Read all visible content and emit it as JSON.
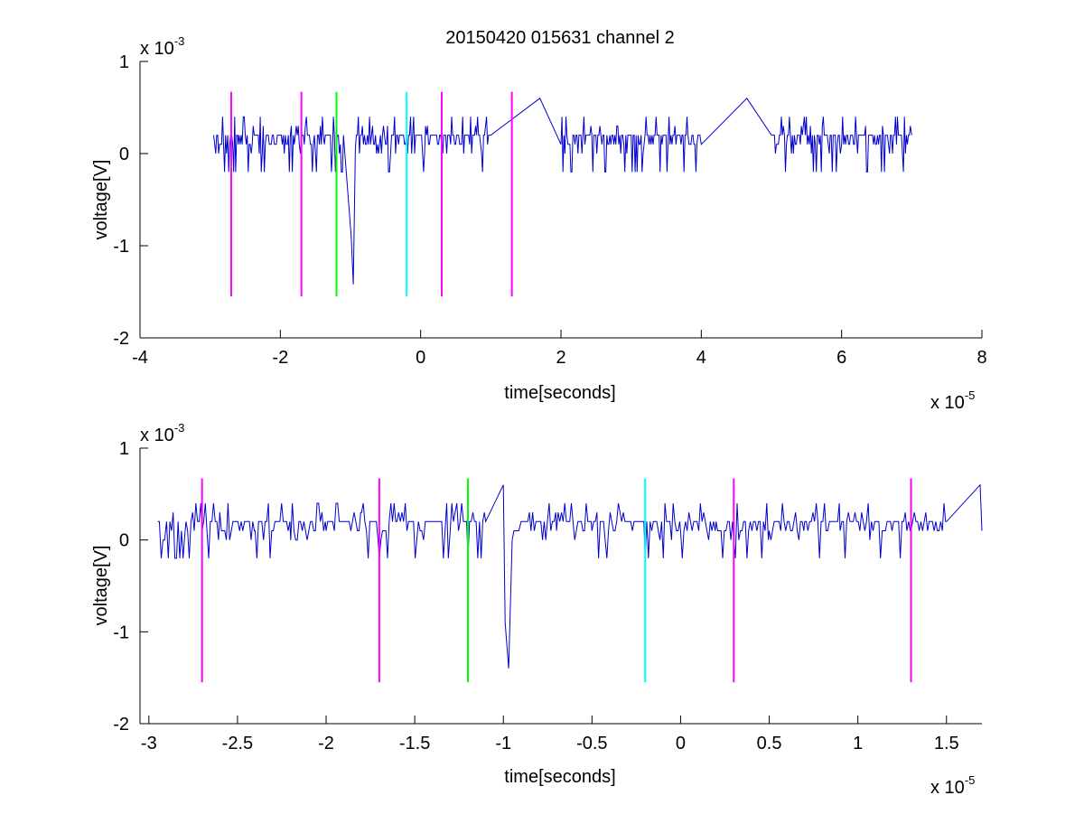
{
  "figure": {
    "title": "20150420 015631 channel 2",
    "background": "#ffffff",
    "signal_color": "#0000cc",
    "marker_colors": {
      "magenta": "#ff00ff",
      "green": "#00ff00",
      "cyan": "#00ffff"
    }
  },
  "chart_data": [
    {
      "type": "line",
      "title": "20150420 015631 channel 2",
      "xlabel": "time[seconds]",
      "ylabel": "voltage[V]",
      "x_multiplier": "x 10",
      "x_multiplier_exp": "-5",
      "y_multiplier": "x 10",
      "y_multiplier_exp": "-3",
      "xlim": [
        -4,
        8
      ],
      "ylim": [
        -2,
        1
      ],
      "xticks": [
        -4,
        -2,
        0,
        2,
        4,
        6,
        8
      ],
      "xtick_labels": [
        "-4",
        "-2",
        "0",
        "2",
        "4",
        "6",
        "8"
      ],
      "yticks": [
        -2,
        -1,
        0,
        1
      ],
      "ytick_labels": [
        "-2",
        "-1",
        "0",
        "1"
      ],
      "grid": false,
      "series": [
        {
          "color": "#0000cc",
          "x_range": [
            -2.95,
            7.0
          ],
          "values": [
            [
              -2.95,
              0.2
            ],
            [
              -2.88,
              0.0
            ],
            [
              -2.75,
              0.2
            ],
            [
              -2.6,
              0.1
            ],
            [
              -2.5,
              0.2
            ],
            [
              -2.3,
              0.0
            ],
            [
              -2.1,
              0.2
            ],
            [
              -1.9,
              0.1
            ],
            [
              -1.7,
              0.2
            ],
            [
              -1.5,
              0.0
            ],
            [
              -1.3,
              0.2
            ],
            [
              -1.1,
              0.2
            ],
            [
              -0.99,
              -0.9
            ],
            [
              -0.96,
              -1.42
            ],
            [
              -0.93,
              0.05
            ],
            [
              -0.8,
              0.2
            ],
            [
              -0.5,
              0.1
            ],
            [
              -0.2,
              0.2
            ],
            [
              0.3,
              0.1
            ],
            [
              1.0,
              0.2
            ],
            [
              1.7,
              0.6
            ],
            [
              2.0,
              0.1
            ],
            [
              3.0,
              0.2
            ],
            [
              4.0,
              0.1
            ],
            [
              4.65,
              0.6
            ],
            [
              5.0,
              0.2
            ],
            [
              6.0,
              0.1
            ],
            [
              7.0,
              0.2
            ]
          ]
        }
      ],
      "markers": [
        {
          "x": -2.7,
          "y_top": 0.67,
          "y_bottom": -1.55,
          "color": "#ff00ff"
        },
        {
          "x": -1.7,
          "y_top": 0.67,
          "y_bottom": -1.55,
          "color": "#ff00ff"
        },
        {
          "x": -1.2,
          "y_top": 0.67,
          "y_bottom": -1.55,
          "color": "#00ff00"
        },
        {
          "x": -0.2,
          "y_top": 0.67,
          "y_bottom": -1.55,
          "color": "#00ffff"
        },
        {
          "x": 0.3,
          "y_top": 0.67,
          "y_bottom": -1.55,
          "color": "#ff00ff"
        },
        {
          "x": 1.3,
          "y_top": 0.67,
          "y_bottom": -1.55,
          "color": "#ff00ff"
        }
      ]
    },
    {
      "type": "line",
      "title": "",
      "xlabel": "time[seconds]",
      "ylabel": "voltage[V]",
      "x_multiplier": "x 10",
      "x_multiplier_exp": "-5",
      "y_multiplier": "x 10",
      "y_multiplier_exp": "-3",
      "xlim": [
        -3.05,
        1.7
      ],
      "ylim": [
        -2,
        1
      ],
      "xticks": [
        -3,
        -2.5,
        -2,
        -1.5,
        -1,
        -0.5,
        0,
        0.5,
        1,
        1.5
      ],
      "xtick_labels": [
        "-3",
        "-2.5",
        "-2",
        "-1.5",
        "-1",
        "-0.5",
        "0",
        "0.5",
        "1",
        "1.5"
      ],
      "yticks": [
        -2,
        -1,
        0,
        1
      ],
      "ytick_labels": [
        "-2",
        "-1",
        "0",
        "1"
      ],
      "grid": false,
      "series": [
        {
          "color": "#0000cc",
          "x_range": [
            -2.95,
            1.7
          ],
          "values": [
            [
              -2.95,
              0.2
            ],
            [
              -2.93,
              -0.2
            ],
            [
              -2.9,
              0.2
            ],
            [
              -2.8,
              0.0
            ],
            [
              -2.7,
              0.1
            ],
            [
              -2.6,
              0.3
            ],
            [
              -2.4,
              0.1
            ],
            [
              -2.2,
              0.0
            ],
            [
              -2.0,
              0.1
            ],
            [
              -1.8,
              0.3
            ],
            [
              -1.7,
              -0.2
            ],
            [
              -1.6,
              0.2
            ],
            [
              -1.45,
              0.0
            ],
            [
              -1.3,
              0.1
            ],
            [
              -1.2,
              -0.2
            ],
            [
              -1.1,
              0.2
            ],
            [
              -1.0,
              0.6
            ],
            [
              -0.99,
              -0.9
            ],
            [
              -0.97,
              -1.4
            ],
            [
              -0.95,
              0.0
            ],
            [
              -0.9,
              0.2
            ],
            [
              -0.7,
              0.1
            ],
            [
              -0.5,
              0.1
            ],
            [
              -0.3,
              0.2
            ],
            [
              -0.2,
              -0.2
            ],
            [
              0.0,
              0.1
            ],
            [
              0.2,
              0.2
            ],
            [
              0.3,
              0.0
            ],
            [
              0.5,
              0.1
            ],
            [
              0.7,
              0.2
            ],
            [
              0.9,
              0.1
            ],
            [
              1.1,
              0.2
            ],
            [
              1.3,
              0.1
            ],
            [
              1.5,
              0.2
            ],
            [
              1.69,
              0.6
            ],
            [
              1.7,
              0.1
            ]
          ]
        }
      ],
      "markers": [
        {
          "x": -2.7,
          "y_top": 0.67,
          "y_bottom": -1.55,
          "color": "#ff00ff"
        },
        {
          "x": -1.7,
          "y_top": 0.67,
          "y_bottom": -1.55,
          "color": "#ff00ff"
        },
        {
          "x": -1.2,
          "y_top": 0.67,
          "y_bottom": -1.55,
          "color": "#00ff00"
        },
        {
          "x": -0.2,
          "y_top": 0.67,
          "y_bottom": -1.55,
          "color": "#00ffff"
        },
        {
          "x": 0.3,
          "y_top": 0.67,
          "y_bottom": -1.55,
          "color": "#ff00ff"
        },
        {
          "x": 1.3,
          "y_top": 0.67,
          "y_bottom": -1.55,
          "color": "#ff00ff"
        }
      ]
    }
  ]
}
